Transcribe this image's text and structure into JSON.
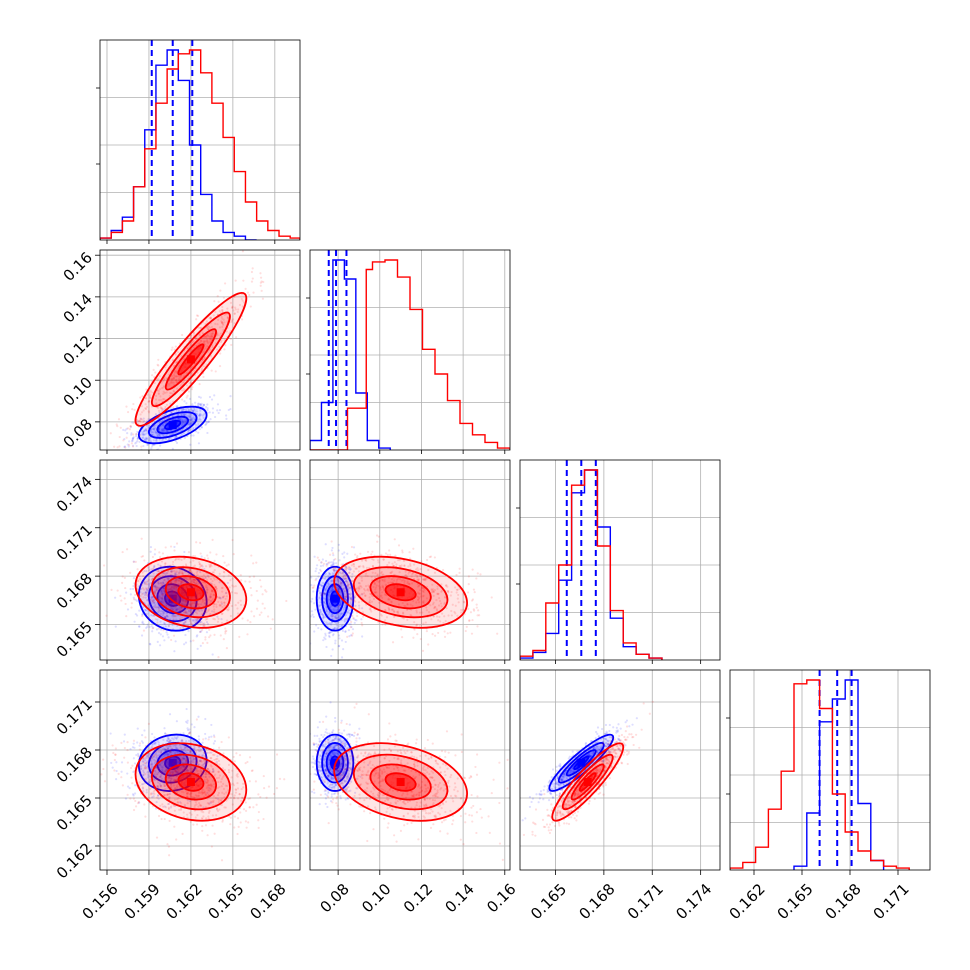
{
  "colors": {
    "blue": "#0000ff",
    "red": "#ff0000",
    "grid": "#b0b0b0",
    "frame": "#000000"
  },
  "chart_data": {
    "type": "corner",
    "grid": true,
    "parameters": [
      {
        "range": [
          0.1555,
          0.1698
        ],
        "ticks": [
          0.156,
          0.159,
          0.162,
          0.165,
          0.168
        ],
        "tick_labels": [
          "0.156",
          "0.159",
          "0.162",
          "0.165",
          "0.168"
        ]
      },
      {
        "range": [
          0.0665,
          0.1625
        ],
        "ticks": [
          0.08,
          0.1,
          0.12,
          0.14,
          0.16
        ],
        "tick_labels": [
          "0.08",
          "0.10",
          "0.12",
          "0.14",
          "0.16"
        ]
      },
      {
        "range": [
          0.1628,
          0.1752
        ],
        "ticks": [
          0.165,
          0.168,
          0.171,
          0.174
        ],
        "tick_labels": [
          "0.165",
          "0.168",
          "0.171",
          "0.174"
        ]
      },
      {
        "range": [
          0.1605,
          0.173
        ],
        "ticks": [
          0.162,
          0.165,
          0.168,
          0.171
        ],
        "tick_labels": [
          "0.162",
          "0.165",
          "0.168",
          "0.171"
        ]
      }
    ],
    "series": [
      {
        "color": "blue",
        "means": [
          0.1607,
          0.0785,
          0.1666,
          0.1672
        ],
        "stds": [
          0.0011,
          0.004,
          0.0009,
          0.0008
        ],
        "correlations": [
          [
            0,
            1,
            0.55
          ],
          [
            0,
            2,
            -0.1
          ],
          [
            0,
            3,
            0.1
          ],
          [
            1,
            2,
            0.0
          ],
          [
            1,
            3,
            0.0
          ],
          [
            2,
            3,
            0.9
          ]
        ],
        "quantile_lines": [
          [
            0.1592,
            0.1607,
            0.1621
          ],
          [
            0.0755,
            0.079,
            0.084
          ],
          [
            0.1657,
            0.1666,
            0.1675
          ],
          [
            0.1661,
            0.1672,
            0.1681
          ]
        ],
        "histograms": [
          {
            "bin_edges": [
              0.1555,
              0.1563,
              0.1571,
              0.1579,
              0.1587,
              0.1595,
              0.1603,
              0.1611,
              0.1619,
              0.1627,
              0.1635,
              0.1643,
              0.1651,
              0.1659,
              0.1667
            ],
            "counts": [
              0.01,
              0.05,
              0.12,
              0.28,
              0.58,
              0.92,
              1.0,
              0.84,
              0.5,
              0.24,
              0.1,
              0.04,
              0.02,
              0.0
            ]
          },
          {
            "bin_edges": [
              0.0665,
              0.072,
              0.0775,
              0.083,
              0.0885,
              0.094,
              0.0995,
              0.105
            ],
            "counts": [
              0.05,
              0.25,
              1.0,
              0.9,
              0.3,
              0.05,
              0.01
            ]
          },
          {
            "bin_edges": [
              0.1628,
              0.1636,
              0.1644,
              0.1652,
              0.166,
              0.1668,
              0.1676,
              0.1684,
              0.1692,
              0.17,
              0.1708,
              0.1716
            ],
            "counts": [
              0.01,
              0.04,
              0.14,
              0.42,
              0.88,
              1.0,
              0.7,
              0.22,
              0.07,
              0.03,
              0.01
            ]
          },
          {
            "bin_edges": [
              0.1645,
              0.1653,
              0.1661,
              0.1669,
              0.1677,
              0.1685,
              0.1693,
              0.1701
            ],
            "counts": [
              0.02,
              0.3,
              0.78,
              0.9,
              1.0,
              0.35,
              0.05
            ]
          }
        ]
      },
      {
        "color": "red",
        "means": [
          0.162,
          0.11,
          0.167,
          0.166
        ],
        "stds": [
          0.0018,
          0.0145,
          0.001,
          0.0011
        ],
        "correlations": [
          [
            0,
            1,
            0.92
          ],
          [
            0,
            2,
            -0.2
          ],
          [
            0,
            3,
            -0.2
          ],
          [
            1,
            2,
            -0.3
          ],
          [
            1,
            3,
            -0.3
          ],
          [
            2,
            3,
            0.9
          ]
        ],
        "histograms": [
          {
            "bin_edges": [
              0.1555,
              0.1563,
              0.1571,
              0.1579,
              0.1587,
              0.1595,
              0.1603,
              0.1611,
              0.1619,
              0.1627,
              0.1635,
              0.1643,
              0.1651,
              0.1659,
              0.1667,
              0.1675,
              0.1683,
              0.1691,
              0.1698
            ],
            "counts": [
              0.01,
              0.04,
              0.1,
              0.28,
              0.48,
              0.72,
              0.9,
              0.98,
              1.0,
              0.88,
              0.72,
              0.54,
              0.36,
              0.2,
              0.1,
              0.05,
              0.02,
              0.01
            ]
          },
          {
            "bin_edges": [
              0.0665,
              0.0755,
              0.0845,
              0.0935,
              0.0965,
              0.1025,
              0.1085,
              0.1145,
              0.1205,
              0.1265,
              0.1325,
              0.1385,
              0.1445,
              0.1505,
              0.1565,
              0.1625
            ],
            "counts": [
              0.0,
              0.0,
              0.22,
              0.95,
              0.99,
              1.0,
              0.91,
              0.74,
              0.53,
              0.4,
              0.26,
              0.14,
              0.08,
              0.04,
              0.01
            ]
          },
          {
            "bin_edges": [
              0.1628,
              0.1636,
              0.1644,
              0.1652,
              0.166,
              0.1668,
              0.1676,
              0.1684,
              0.1692,
              0.17,
              0.1708,
              0.1716
            ],
            "counts": [
              0.02,
              0.05,
              0.3,
              0.5,
              0.92,
              1.0,
              0.6,
              0.26,
              0.09,
              0.03,
              0.01
            ]
          },
          {
            "bin_edges": [
              0.1605,
              0.1613,
              0.1621,
              0.1629,
              0.1637,
              0.1645,
              0.1653,
              0.1661,
              0.1669,
              0.1677,
              0.1685,
              0.1693,
              0.1701,
              0.1709,
              0.1717
            ],
            "counts": [
              0.01,
              0.04,
              0.12,
              0.32,
              0.52,
              0.98,
              1.0,
              0.85,
              0.4,
              0.2,
              0.1,
              0.05,
              0.02,
              0.01
            ]
          }
        ]
      }
    ]
  }
}
